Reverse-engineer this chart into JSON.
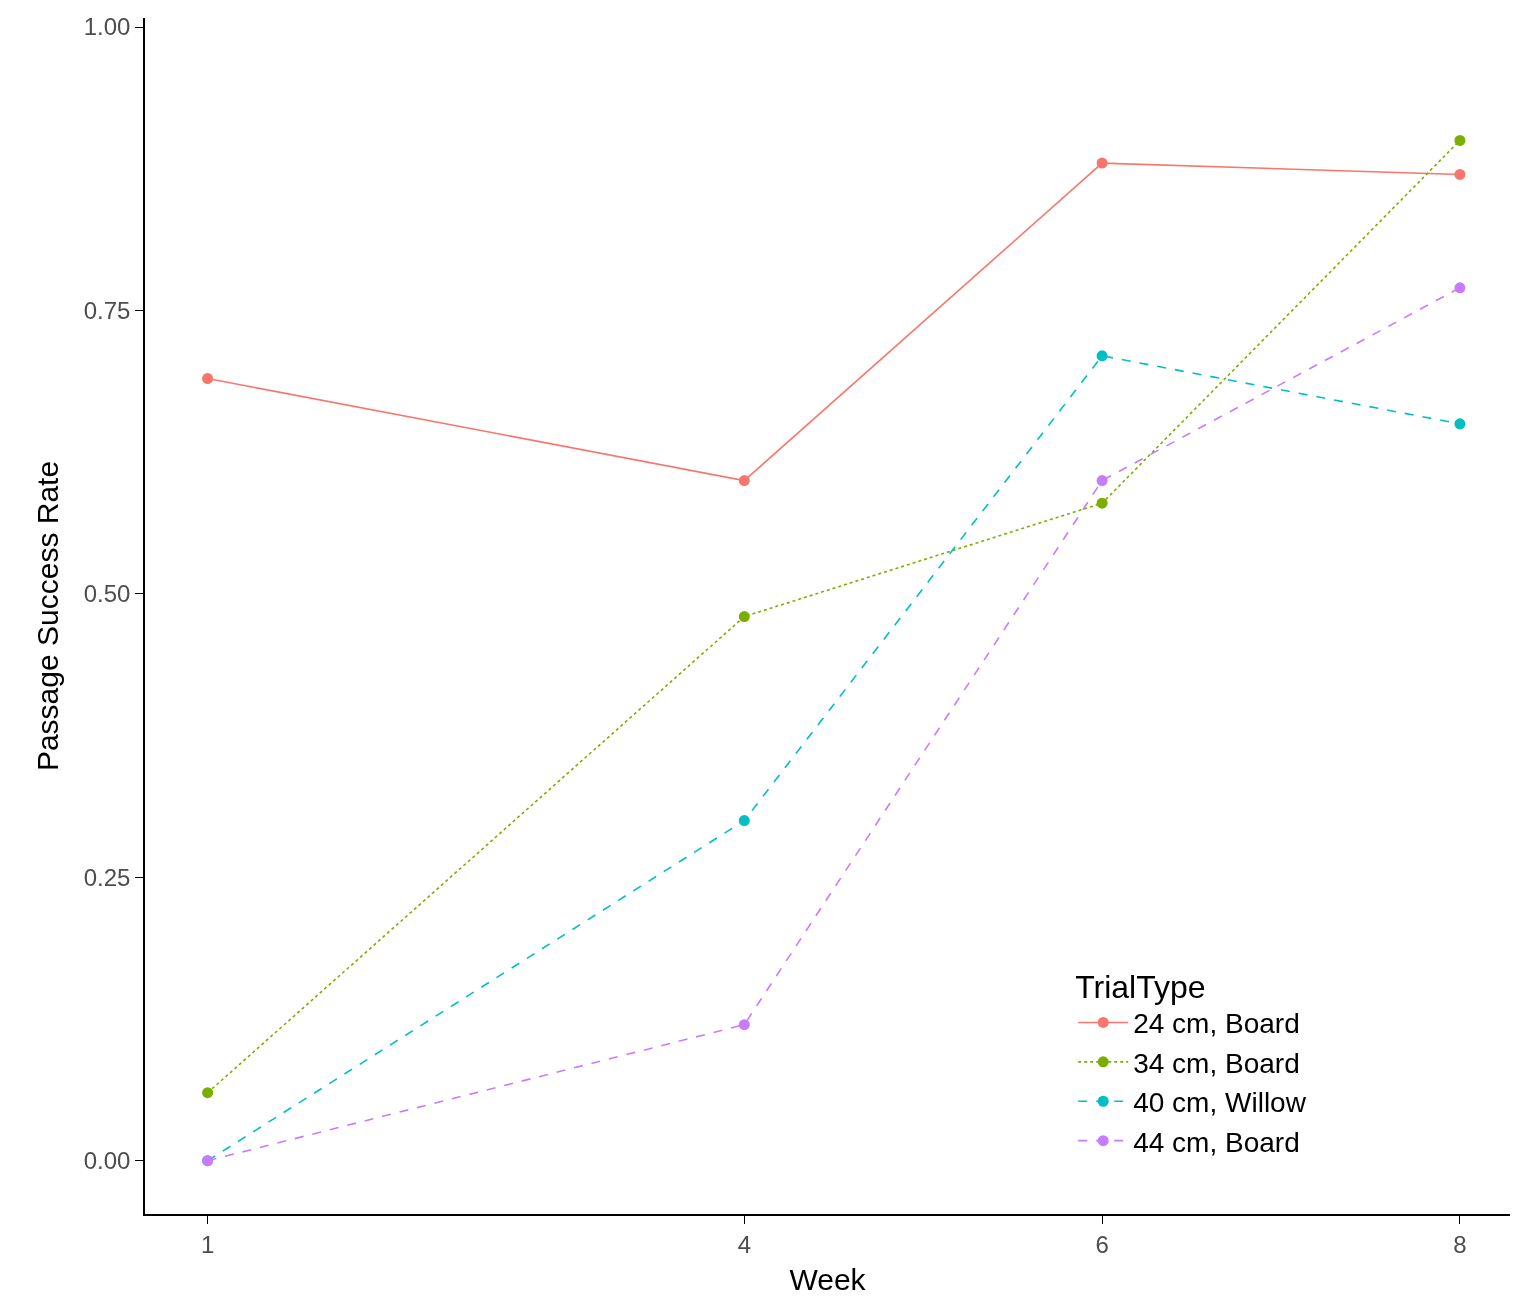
{
  "chart_data": {
    "type": "line",
    "xlabel": "Week",
    "ylabel": "Passage Success Rate",
    "legend_title": "TrialType",
    "x": [
      1,
      4,
      6,
      8
    ],
    "series": [
      {
        "name": "24 cm, Board",
        "color": "#f8766d",
        "line_style": "solid",
        "values": [
          0.69,
          0.6,
          0.88,
          0.87
        ]
      },
      {
        "name": "34 cm, Board",
        "color": "#7cae00",
        "line_style": "dotted",
        "values": [
          0.06,
          0.48,
          0.58,
          0.9
        ]
      },
      {
        "name": "40 cm, Willow",
        "color": "#00bfc4",
        "line_style": "dashed",
        "values": [
          0,
          0.3,
          0.71,
          0.65
        ]
      },
      {
        "name": "44 cm, Board",
        "color": "#c77cff",
        "line_style": "dashed",
        "values": [
          0,
          0.12,
          0.6,
          0.77
        ]
      }
    ],
    "xlim": [
      0.65,
      8.28
    ],
    "xticks": [
      1,
      4,
      6,
      8
    ],
    "ylim": [
      -0.047,
      1.008
    ],
    "yticks": [
      {
        "value": 0,
        "label": "0.00"
      },
      {
        "value": 0.25,
        "label": "0.25"
      },
      {
        "value": 0.5,
        "label": "0.50"
      },
      {
        "value": 0.75,
        "label": "0.75"
      },
      {
        "value": 1,
        "label": "1.00"
      }
    ],
    "grid": false,
    "legend": "bottom right",
    "marker": "circle"
  }
}
